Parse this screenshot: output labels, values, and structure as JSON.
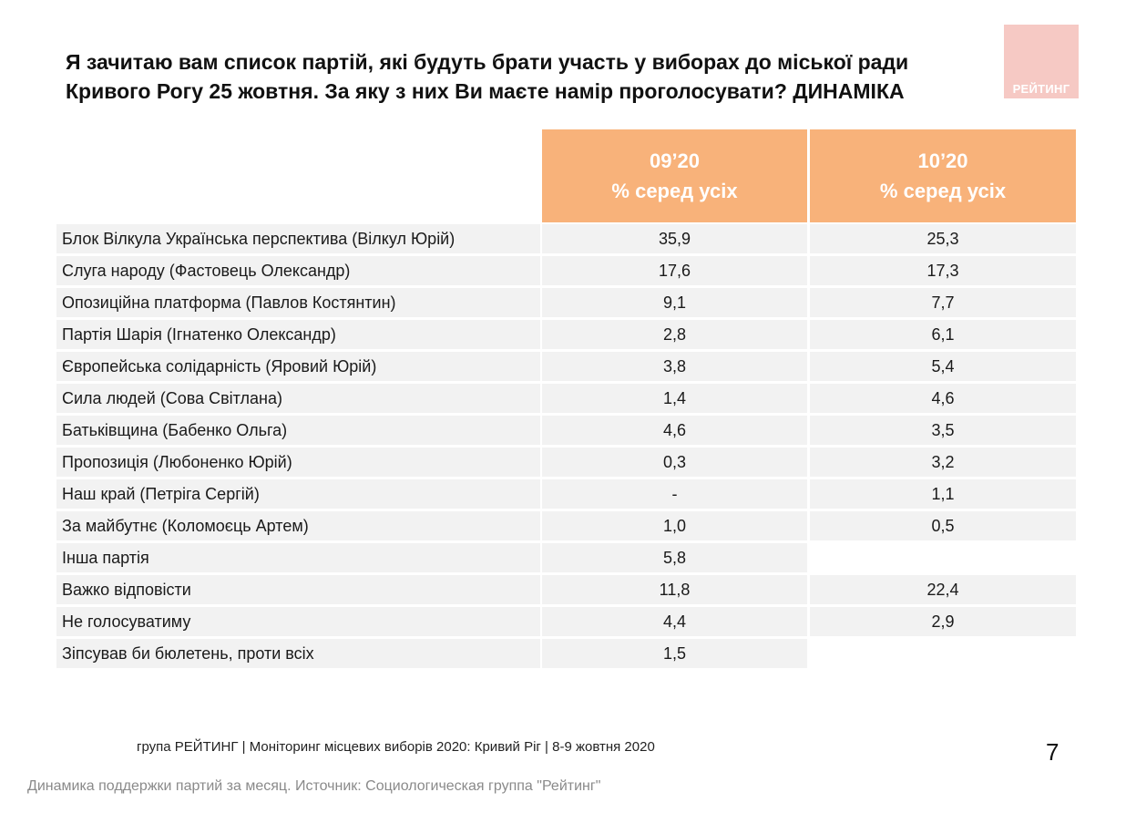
{
  "title": "Я зачитаю вам список партій, які будуть брати участь у виборах до міської ради Кривого Рогу 25 жовтня. За яку з них Ви маєте намір проголосувати? ДИНАМІКА",
  "logo_text": "РЕЙТИНГ",
  "colors": {
    "header_bg": "#f8b27a",
    "row_bg": "#f2f2f2",
    "logo_bg": "#f6c9c4"
  },
  "chart_data": {
    "type": "table",
    "columns": [
      {
        "period": "09’20",
        "subtitle": "% серед усіх"
      },
      {
        "period": "10’20",
        "subtitle": "% серед усіх"
      }
    ],
    "rows": [
      {
        "label": "Блок Вілкула Українська перспектива (Вілкул Юрій)",
        "v1": "35,9",
        "v2": "25,3"
      },
      {
        "label": "Слуга народу (Фастовець Олександр)",
        "v1": "17,6",
        "v2": "17,3"
      },
      {
        "label": "Опозиційна платформа (Павлов Костянтин)",
        "v1": "9,1",
        "v2": "7,7"
      },
      {
        "label": "Партія Шарія (Ігнатенко Олександр)",
        "v1": "2,8",
        "v2": "6,1"
      },
      {
        "label": "Європейська солідарність (Яровий Юрій)",
        "v1": "3,8",
        "v2": "5,4"
      },
      {
        "label": "Сила людей (Сова Світлана)",
        "v1": "1,4",
        "v2": "4,6"
      },
      {
        "label": "Батьківщина (Бабенко Ольга)",
        "v1": "4,6",
        "v2": "3,5"
      },
      {
        "label": "Пропозиція (Любоненко Юрій)",
        "v1": "0,3",
        "v2": "3,2"
      },
      {
        "label": "Наш край (Петріга Сергій)",
        "v1": "-",
        "v2": "1,1"
      },
      {
        "label": "За майбутнє (Коломоєць Артем)",
        "v1": "1,0",
        "v2": "0,5"
      },
      {
        "label": "Інша партія",
        "v1": "5,8",
        "v2": null
      },
      {
        "label": "Важко відповісти",
        "v1": "11,8",
        "v2": "22,4"
      },
      {
        "label": "Не голосуватиму",
        "v1": "4,4",
        "v2": "2,9"
      },
      {
        "label": "Зіпсував би бюлетень, проти всіх",
        "v1": "1,5",
        "v2": null
      }
    ]
  },
  "footer": "група РЕЙТИНГ  | Моніторинг місцевих виборів 2020: Кривий Ріг |  8-9 жовтня 2020",
  "page_number": "7",
  "caption": "Динамика поддержки партий за месяц. Источник: Социологическая группа \"Рейтинг\""
}
